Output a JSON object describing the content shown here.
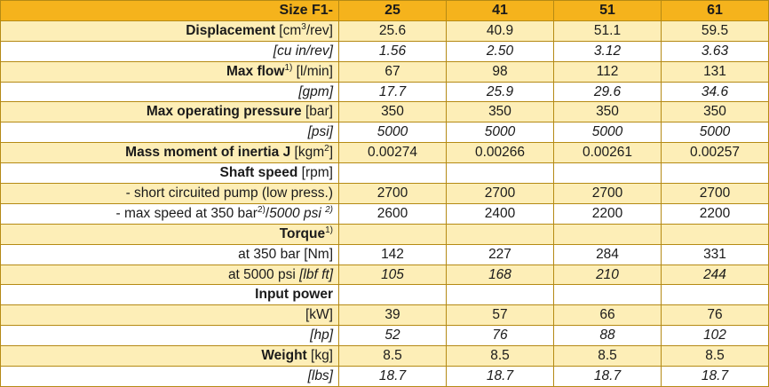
{
  "header": {
    "label": "Size F1-",
    "columns": [
      "25",
      "41",
      "51",
      "61"
    ]
  },
  "rows": [
    {
      "label_bold": "Displacement",
      "label_pre": " [cm",
      "label_sup": "3",
      "label_post": "/rev]",
      "values": [
        "25.6",
        "40.9",
        "51.1",
        "59.5"
      ]
    },
    {
      "label_italic": "[cu in/rev]",
      "values": [
        "1.56",
        "2.50",
        "3.12",
        "3.63"
      ]
    },
    {
      "label_bold": "Max flow",
      "label_sup": "1)",
      "label_post": " [l/min]",
      "values": [
        "67",
        "98",
        "112",
        "131"
      ]
    },
    {
      "label_italic": "[gpm]",
      "values": [
        "17.7",
        "25.9",
        "29.6",
        "34.6"
      ]
    },
    {
      "label_bold": "Max operating pressure",
      "label_post": " [bar]",
      "values": [
        "350",
        "350",
        "350",
        "350"
      ]
    },
    {
      "label_italic": "[psi]",
      "values": [
        "5000",
        "5000",
        "5000",
        "5000"
      ]
    },
    {
      "label_bold": "Mass moment of inertia J",
      "label_pre": " [kgm",
      "label_sup": "2",
      "label_post": "]",
      "values": [
        "0.00274",
        "0.00266",
        "0.00261",
        "0.00257"
      ]
    },
    {
      "label_bold": "Shaft speed",
      "label_post": " [rpm]",
      "values": [
        "",
        "",
        "",
        ""
      ]
    },
    {
      "label_plain": "- short circuited pump (low press.)",
      "values": [
        "2700",
        "2700",
        "2700",
        "2700"
      ]
    },
    {
      "label_plain": "- max speed at 350 bar",
      "label_sup": "2)",
      "label_mid": "/",
      "label_italic": "5000 psi ",
      "label_sup2": "2)",
      "values": [
        "2600",
        "2400",
        "2200",
        "2200"
      ]
    },
    {
      "label_bold": "Torque",
      "label_sup": "1)",
      "values": [
        "",
        "",
        "",
        ""
      ]
    },
    {
      "label_plain": "at 350 bar [Nm]",
      "values": [
        "142",
        "227",
        "284",
        "331"
      ]
    },
    {
      "label_plain": "at 5000 psi ",
      "label_italic": "[lbf ft]",
      "values": [
        "105",
        "168",
        "210",
        "244"
      ]
    },
    {
      "label_bold": "Input power",
      "values": [
        "",
        "",
        "",
        ""
      ]
    },
    {
      "label_plain": "[kW]",
      "values": [
        "39",
        "57",
        "66",
        "76"
      ]
    },
    {
      "label_italic": "[hp]",
      "values": [
        "52",
        "76",
        "88",
        "102"
      ]
    },
    {
      "label_bold": "Weight",
      "label_post": " [kg]",
      "values": [
        "8.5",
        "8.5",
        "8.5",
        "8.5"
      ]
    },
    {
      "label_italic": "[lbs]",
      "values": [
        "18.7",
        "18.7",
        "18.7",
        "18.7"
      ]
    }
  ],
  "style": {
    "header_bg": "#f5b31c",
    "stripe_bg": "#fdeeb7",
    "border": "#b58a14"
  }
}
